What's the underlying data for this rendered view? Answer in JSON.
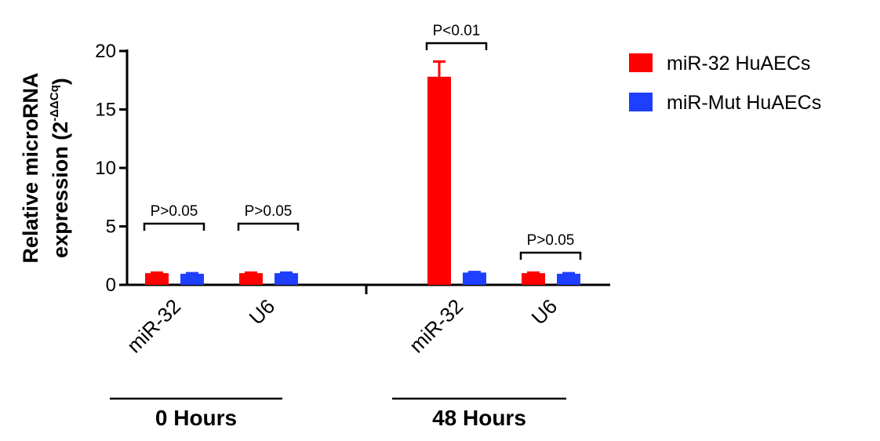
{
  "chart_data": {
    "type": "bar",
    "y_label": {
      "line1": "Relative microRNA",
      "line2": "expression (2",
      "superscript": "-ΔΔCq",
      "closing": ")"
    },
    "categories": [
      "miR-32",
      "U6",
      null,
      "miR-32",
      "U6"
    ],
    "series": [
      {
        "name": "miR-32 HuAECs",
        "color": "#ff0000",
        "values": [
          1,
          1,
          null,
          17.8,
          1
        ],
        "errors": [
          0.05,
          0.05,
          null,
          1.3,
          0.05
        ]
      },
      {
        "name": "miR-Mut HuAECs",
        "color": "#1f3fff",
        "values": [
          0.95,
          1,
          null,
          1.05,
          0.95
        ],
        "errors": [
          0.05,
          0.05,
          null,
          0.05,
          0.05
        ]
      }
    ],
    "ylim": [
      0,
      20
    ],
    "yticks": [
      0,
      5,
      10,
      15,
      20
    ],
    "annotations": [
      "P>0.05",
      "P>0.05",
      "P<0.01",
      "P>0.05"
    ],
    "group_labels": [
      "0 Hours",
      "48 Hours"
    ],
    "legend": "top-right"
  }
}
